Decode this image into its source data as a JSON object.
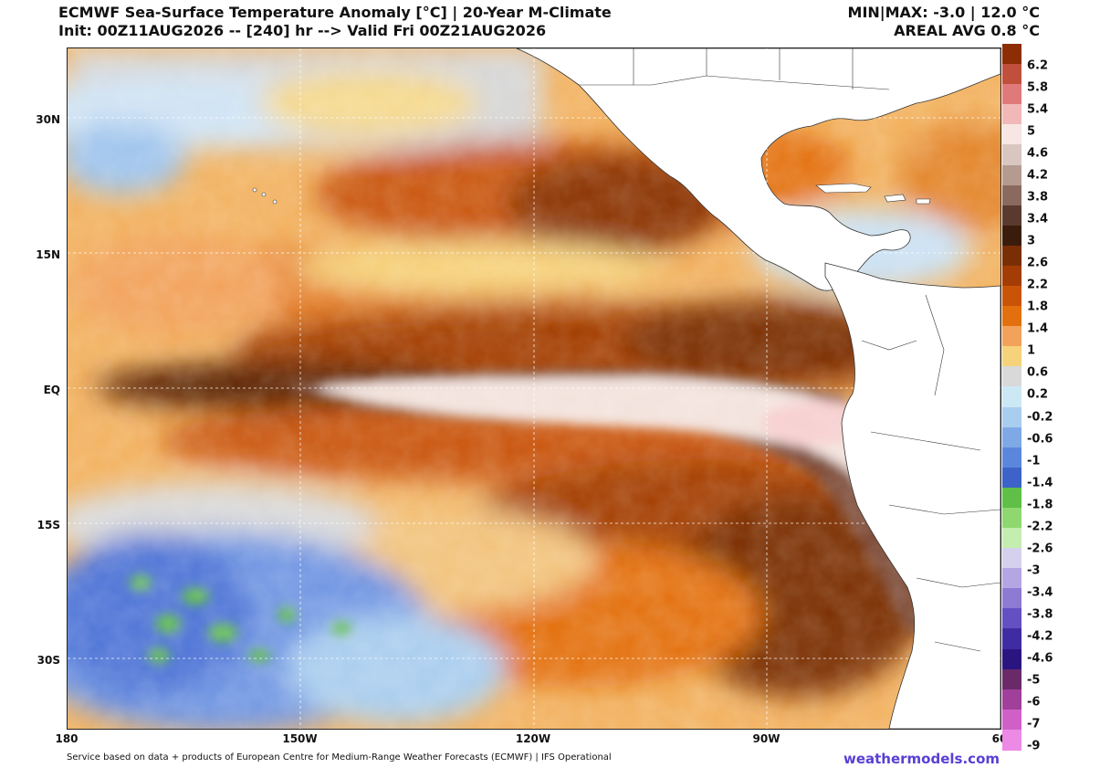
{
  "header": {
    "title": "ECMWF Sea-Surface Temperature Anomaly [°C] | 20-Year M-Climate",
    "init": "Init: 00Z11AUG2026 -- [240] hr --> Valid Fri 00Z21AUG2026",
    "minmax": "MIN|MAX: -3.0 | 12.0 °C",
    "areal_avg": "AREAL AVG 0.8 °C"
  },
  "axes": {
    "lat_labels": [
      {
        "value": 30,
        "label": "30N"
      },
      {
        "value": 15,
        "label": "15N"
      },
      {
        "value": 0,
        "label": "EQ"
      },
      {
        "value": -15,
        "label": "15S"
      },
      {
        "value": -30,
        "label": "30S"
      }
    ],
    "lon_labels": [
      {
        "value": -180,
        "label": "180"
      },
      {
        "value": -150,
        "label": "150W"
      },
      {
        "value": -120,
        "label": "120W"
      },
      {
        "value": -90,
        "label": "90W"
      },
      {
        "value": -60,
        "label": "60"
      }
    ],
    "lat_range": [
      -37.5,
      38
    ],
    "lon_range": [
      -180,
      -60
    ]
  },
  "colorbar": {
    "labels": [
      "6.2",
      "5.8",
      "5.4",
      "5",
      "4.6",
      "4.2",
      "3.8",
      "3.4",
      "3",
      "2.6",
      "2.2",
      "1.8",
      "1.4",
      "1",
      "0.6",
      "0.2",
      "-0.2",
      "-0.6",
      "-1",
      "-1.4",
      "-1.8",
      "-2.2",
      "-2.6",
      "-3",
      "-3.4",
      "-3.8",
      "-4.2",
      "-4.6",
      "-5",
      "-6",
      "-7",
      "-9"
    ],
    "colors": [
      "#8c2d04",
      "#c0503c",
      "#e07a7a",
      "#f2b8b8",
      "#f7e6e3",
      "#d9c6c0",
      "#b59a90",
      "#8a6a5e",
      "#5a3a2e",
      "#3a1c0c",
      "#7a2e05",
      "#a33d05",
      "#c95408",
      "#e3700f",
      "#f2a25a",
      "#f6d27a",
      "#d9d9d9",
      "#cde8f5",
      "#a9cdee",
      "#7fa9e6",
      "#5a86dc",
      "#3d63c8",
      "#5fbf46",
      "#8fd870",
      "#c4edb0",
      "#d6d0ef",
      "#b3a6e3",
      "#8c7ad3",
      "#6450c2",
      "#3f2ca3",
      "#2a1580",
      "#6a2a6a",
      "#a0409a",
      "#d060c8",
      "#ec8ae6"
    ],
    "top_color": "#a0421c"
  },
  "map_colors": {
    "ocean_base": "#f2b15e",
    "land": "#ffffff",
    "warm_tongue": "#f3e2dc",
    "deep_warm": "#7a2e05",
    "cool": "#6f95e2",
    "neutral": "#d9d9d9",
    "green": "#5fbf46"
  },
  "footer": {
    "credit": "Service based on data + products of European Centre for Medium-Range Weather Forecasts (ECMWF) | IFS Operational",
    "brand": "weathermodels.com"
  }
}
